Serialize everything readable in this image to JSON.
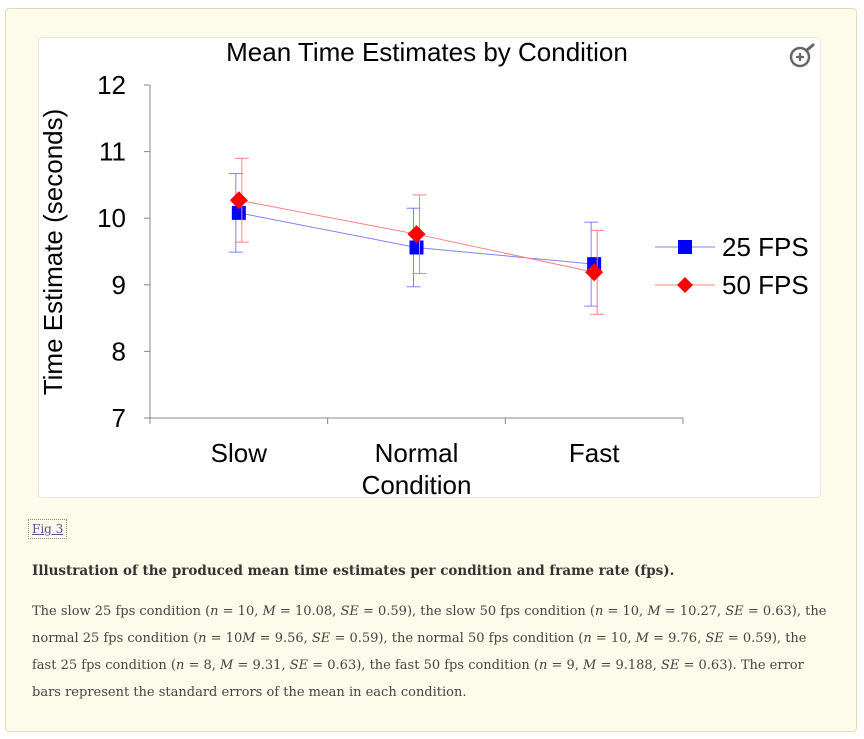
{
  "figure_link": "Fig 3",
  "caption": {
    "title": "Illustration of the produced mean time estimates per condition and frame rate (fps).",
    "segments": [
      {
        "t": "The slow 25 fps condition ("
      },
      {
        "t": "n",
        "i": true
      },
      {
        "t": " = 10, "
      },
      {
        "t": "M",
        "i": true
      },
      {
        "t": " = 10.08, "
      },
      {
        "t": "SE",
        "i": true
      },
      {
        "t": " = 0.59), the slow 50 fps condition ("
      },
      {
        "t": "n",
        "i": true
      },
      {
        "t": " = 10, "
      },
      {
        "t": "M",
        "i": true
      },
      {
        "t": " = 10.27, "
      },
      {
        "t": "SE",
        "i": true
      },
      {
        "t": " = 0.63), the normal 25 fps condition ("
      },
      {
        "t": "n",
        "i": true
      },
      {
        "t": " = 10"
      },
      {
        "t": "M",
        "i": true
      },
      {
        "t": " = 9.56, "
      },
      {
        "t": "SE",
        "i": true
      },
      {
        "t": " = 0.59), the normal 50 fps condition ("
      },
      {
        "t": "n",
        "i": true
      },
      {
        "t": " = 10, "
      },
      {
        "t": "M",
        "i": true
      },
      {
        "t": " = 9.76, "
      },
      {
        "t": "SE",
        "i": true
      },
      {
        "t": " = 0.59), the fast 25 fps condition ("
      },
      {
        "t": "n",
        "i": true
      },
      {
        "t": " = 8, "
      },
      {
        "t": "M",
        "i": true
      },
      {
        "t": " = 9.31, "
      },
      {
        "t": "SE",
        "i": true
      },
      {
        "t": " = 0.63), the fast 50 fps condition ("
      },
      {
        "t": "n",
        "i": true
      },
      {
        "t": " = 9, "
      },
      {
        "t": "M",
        "i": true
      },
      {
        "t": " = 9.188, "
      },
      {
        "t": "SE",
        "i": true
      },
      {
        "t": " = 0.63). The error bars represent the standard errors of the mean in each condition."
      }
    ]
  },
  "icons": {
    "zoom": "zoom-in-icon"
  },
  "chart_data": {
    "type": "line",
    "title": "Mean Time Estimates by Condition",
    "xlabel": "Condition",
    "ylabel": "Time Estimate (seconds)",
    "categories": [
      "Slow",
      "Normal",
      "Fast"
    ],
    "ylim": [
      7,
      12
    ],
    "yticks": [
      7,
      8,
      9,
      10,
      11,
      12
    ],
    "grid": false,
    "legend_position": "right",
    "series": [
      {
        "name": "25 FPS",
        "values": [
          10.08,
          9.56,
          9.31
        ],
        "errors": [
          0.59,
          0.59,
          0.63
        ],
        "color": "#0000ff",
        "line_color": "#8080ff",
        "marker": "square"
      },
      {
        "name": "50 FPS",
        "values": [
          10.27,
          9.76,
          9.188
        ],
        "errors": [
          0.63,
          0.59,
          0.63
        ],
        "color": "#ff0000",
        "line_color": "#ff8080",
        "marker": "diamond"
      }
    ]
  }
}
